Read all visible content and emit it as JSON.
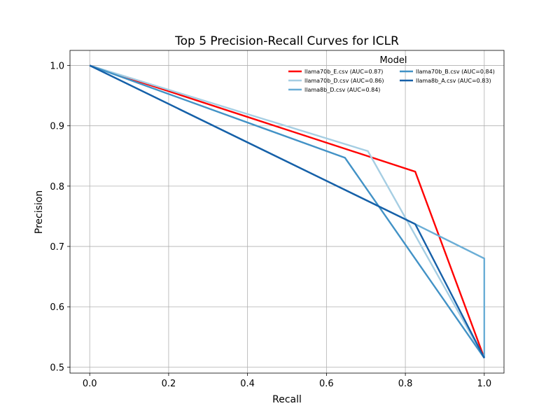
{
  "chart_data": {
    "type": "line",
    "title": "Top 5 Precision-Recall Curves for ICLR",
    "xlabel": "Recall",
    "ylabel": "Precision",
    "xlim": [
      -0.05,
      1.05
    ],
    "ylim": [
      0.49,
      1.025
    ],
    "xticks": [
      0.0,
      0.2,
      0.4,
      0.6,
      0.8,
      1.0
    ],
    "xtick_labels": [
      "0.0",
      "0.2",
      "0.4",
      "0.6",
      "0.8",
      "1.0"
    ],
    "yticks": [
      0.5,
      0.6,
      0.7,
      0.8,
      0.9,
      1.0
    ],
    "ytick_labels": [
      "0.5",
      "0.6",
      "0.7",
      "0.8",
      "0.9",
      "1.0"
    ],
    "grid": true,
    "legend": {
      "title": "Model",
      "placement": "top-right",
      "columns": 2
    },
    "series": [
      {
        "name": "llama70b_E.csv (AUC=0.87)",
        "color": "#ff0000",
        "x": [
          0.0,
          0.825,
          1.0
        ],
        "y": [
          1.0,
          0.824,
          0.515
        ]
      },
      {
        "name": "llama70b_D.csv (AUC=0.86)",
        "color": "#a6cee3",
        "x": [
          0.0,
          0.705,
          1.0
        ],
        "y": [
          1.0,
          0.858,
          0.515
        ]
      },
      {
        "name": "llama8b_D.csv (AUC=0.84)",
        "color": "#6baed6",
        "x": [
          0.0,
          0.825,
          1.0,
          1.0
        ],
        "y": [
          1.0,
          0.737,
          0.68,
          0.515
        ]
      },
      {
        "name": "llama70b_B.csv (AUC=0.84)",
        "color": "#4292c6",
        "x": [
          0.0,
          0.647,
          1.0
        ],
        "y": [
          1.0,
          0.847,
          0.515
        ]
      },
      {
        "name": "llama8b_A.csv (AUC=0.83)",
        "color": "#1660a8",
        "x": [
          0.0,
          0.825,
          1.0
        ],
        "y": [
          1.0,
          0.737,
          0.515
        ]
      }
    ]
  }
}
